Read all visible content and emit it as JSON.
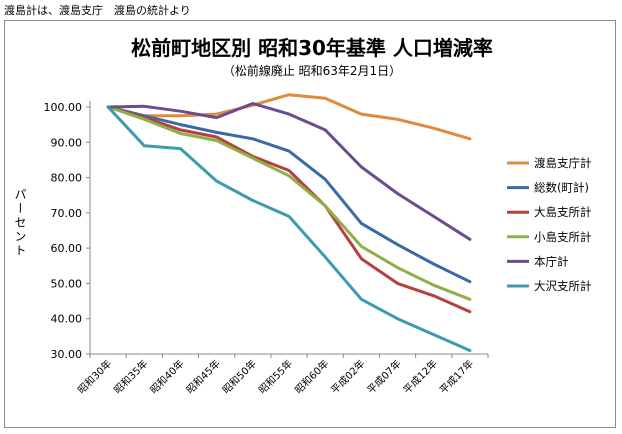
{
  "source_note": "渡島計は、渡島支庁　渡島の統計より",
  "chart_data": {
    "type": "line",
    "title": "松前町地区別  昭和30年基準  人口増減率",
    "subtitle": "（松前線廃止 昭和63年2月1日）",
    "ylabel": "パーセント",
    "xlabel": "",
    "ylim": [
      30,
      105
    ],
    "yticks": [
      "30.00",
      "40.00",
      "50.00",
      "60.00",
      "70.00",
      "80.00",
      "90.00",
      "100.00"
    ],
    "grid": false,
    "legend_position": "right",
    "categories": [
      "昭和30年",
      "昭和35年",
      "昭和40年",
      "昭和45年",
      "昭和50年",
      "昭和55年",
      "昭和60年",
      "平成02年",
      "平成07年",
      "平成12年",
      "平成17年"
    ],
    "series": [
      {
        "name": "渡島支庁計",
        "color": "#e08a3c",
        "values": [
          100.0,
          97.5,
          97.5,
          98.0,
          100.5,
          103.5,
          102.5,
          98.0,
          96.5,
          94.0,
          91.0
        ]
      },
      {
        "name": "総数(町計)",
        "color": "#3a6aa5",
        "values": [
          100.0,
          97.5,
          95.0,
          92.8,
          91.0,
          87.5,
          79.5,
          67.0,
          61.0,
          55.5,
          50.5
        ]
      },
      {
        "name": "大島支所計",
        "color": "#b5413e",
        "values": [
          100.0,
          97.0,
          93.5,
          91.5,
          86.0,
          82.0,
          72.0,
          57.0,
          50.0,
          46.5,
          42.0
        ]
      },
      {
        "name": "小島支所計",
        "color": "#8fb049",
        "values": [
          100.0,
          96.5,
          92.5,
          90.5,
          85.5,
          80.5,
          72.0,
          60.5,
          54.5,
          49.5,
          45.5
        ]
      },
      {
        "name": "本庁計",
        "color": "#6c4c8f",
        "values": [
          100.0,
          100.2,
          98.8,
          97.0,
          101.0,
          98.0,
          93.5,
          83.0,
          75.5,
          69.0,
          62.5
        ]
      },
      {
        "name": "大沢支所計",
        "color": "#3d9bb0",
        "values": [
          100.0,
          89.0,
          88.2,
          79.0,
          73.5,
          69.0,
          57.5,
          45.5,
          40.0,
          35.5,
          31.0
        ]
      }
    ]
  }
}
